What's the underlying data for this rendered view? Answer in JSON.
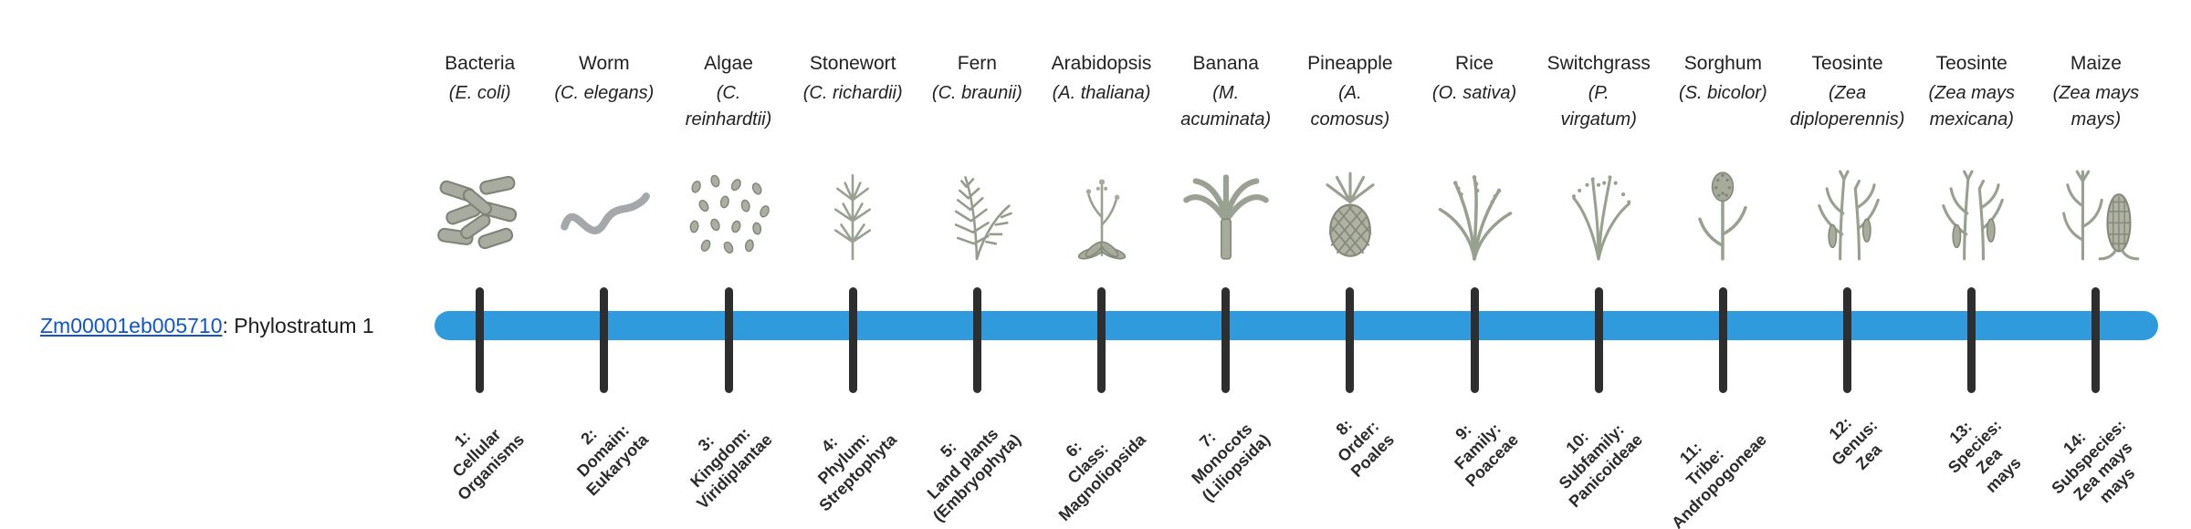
{
  "colors": {
    "bar_blue": "#2f9bdc",
    "tick_dark": "#2e2e2e",
    "link_blue": "#1155cc",
    "label_dark": "#2b2b2b"
  },
  "gene": {
    "id": "Zm00001eb005710",
    "suffix": ": Phylostratum 1"
  },
  "organisms": [
    {
      "name": "Bacteria",
      "sci_lines": [
        "(E. coli)"
      ],
      "icon": "bacteria",
      "stage_lines": [
        "1:",
        "Cellular",
        "Organisms"
      ]
    },
    {
      "name": "Worm",
      "sci_lines": [
        "(C. elegans)"
      ],
      "icon": "worm",
      "stage_lines": [
        "2:",
        "Domain:",
        "Eukaryota"
      ]
    },
    {
      "name": "Algae",
      "sci_lines": [
        "(C.",
        "reinhardtii)"
      ],
      "icon": "algae",
      "stage_lines": [
        "3:",
        "Kingdom:",
        "Viridiplantae"
      ]
    },
    {
      "name": "Stonewort",
      "sci_lines": [
        "(C. richardii)"
      ],
      "icon": "stonewort",
      "stage_lines": [
        "4:",
        "Phylum:",
        "Streptophyta"
      ]
    },
    {
      "name": "Fern",
      "sci_lines": [
        "(C. braunii)"
      ],
      "icon": "fern",
      "stage_lines": [
        "5:",
        "Land plants",
        "(Embryophyta)"
      ]
    },
    {
      "name": "Arabidopsis",
      "sci_lines": [
        "(A. thaliana)"
      ],
      "icon": "arabidopsis",
      "stage_lines": [
        "6:",
        "Class:",
        "Magnoliopsida"
      ]
    },
    {
      "name": "Banana",
      "sci_lines": [
        "(M.",
        "acuminata)"
      ],
      "icon": "banana",
      "stage_lines": [
        "7:",
        "Monocots",
        "(Liliopsida)"
      ]
    },
    {
      "name": "Pineapple",
      "sci_lines": [
        "(A.",
        "comosus)"
      ],
      "icon": "pineapple",
      "stage_lines": [
        "8:",
        "Order:",
        "Poales"
      ]
    },
    {
      "name": "Rice",
      "sci_lines": [
        "(O. sativa)"
      ],
      "icon": "rice",
      "stage_lines": [
        "9:",
        "Family:",
        "Poaceae"
      ]
    },
    {
      "name": "Switchgrass",
      "sci_lines": [
        "(P.",
        "virgatum)"
      ],
      "icon": "switchgrass",
      "stage_lines": [
        "10:",
        "Subfamily:",
        "Panicoideae"
      ]
    },
    {
      "name": "Sorghum",
      "sci_lines": [
        "(S. bicolor)"
      ],
      "icon": "sorghum",
      "stage_lines": [
        "11:",
        "Tribe:",
        "Andropogoneae"
      ]
    },
    {
      "name": "Teosinte",
      "sci_lines": [
        "(Zea",
        "diploperennis)"
      ],
      "icon": "teosinte",
      "stage_lines": [
        "12:",
        "Genus:",
        "Zea"
      ]
    },
    {
      "name": "Teosinte",
      "sci_lines": [
        "(Zea mays",
        "mexicana)"
      ],
      "icon": "teosinte",
      "stage_lines": [
        "13:",
        "Species:",
        "Zea",
        "mays"
      ]
    },
    {
      "name": "Maize",
      "sci_lines": [
        "(Zea mays",
        "mays)"
      ],
      "icon": "maize",
      "stage_lines": [
        "14:",
        "Subspecies:",
        "Zea mays",
        "mays"
      ]
    }
  ]
}
